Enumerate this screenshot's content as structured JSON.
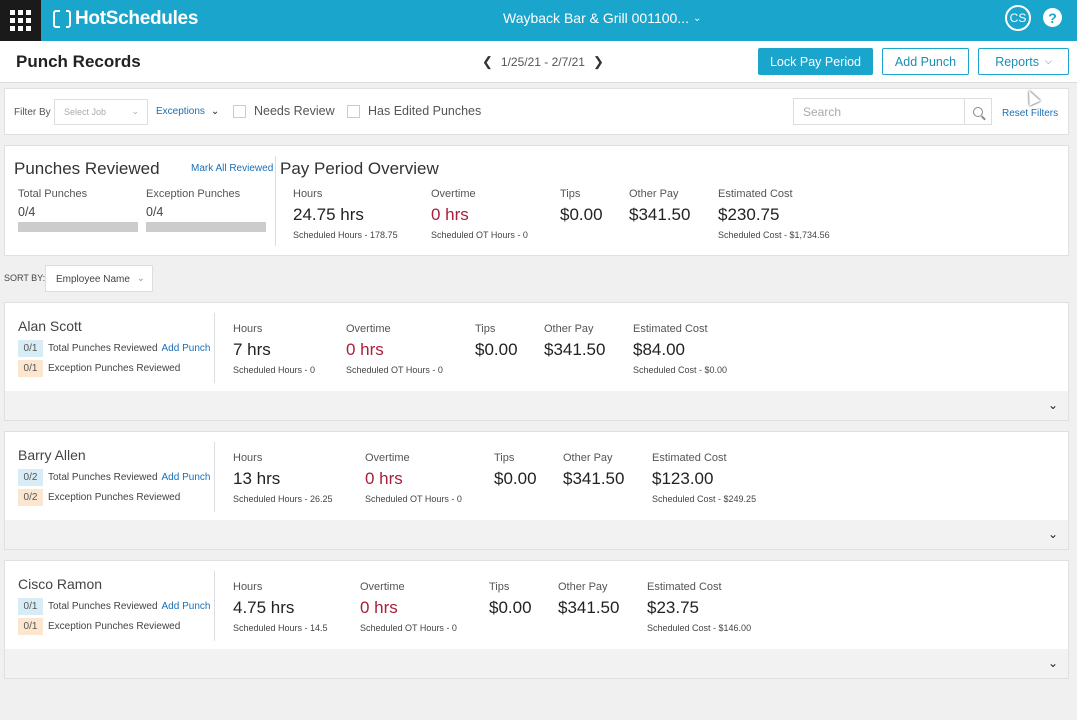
{
  "topbar": {
    "logo": "HotSchedules",
    "location": "Wayback Bar & Grill 001100...",
    "avatar_initials": "CS",
    "help": "?"
  },
  "header": {
    "title": "Punch Records",
    "period": "1/25/21 - 2/7/21",
    "lock_label": "Lock Pay Period",
    "add_punch_label": "Add Punch",
    "reports_label": "Reports"
  },
  "filters": {
    "filter_by": "Filter By",
    "job_placeholder": "Select Job",
    "exceptions": "Exceptions",
    "needs_review": "Needs Review",
    "has_edited": "Has Edited Punches",
    "search_placeholder": "Search",
    "reset": "Reset Filters"
  },
  "summary": {
    "reviewed_title": "Punches Reviewed",
    "mark_all": "Mark All Reviewed",
    "total_punches_label": "Total Punches",
    "total_punches_value": "0/4",
    "exception_punches_label": "Exception Punches",
    "exception_punches_value": "0/4",
    "overview_title": "Pay Period Overview",
    "hours_label": "Hours",
    "hours_value": "24.75 hrs",
    "hours_sub": "Scheduled Hours - 178.75",
    "overtime_label": "Overtime",
    "overtime_value": "0 hrs",
    "overtime_sub": "Scheduled OT Hours - 0",
    "tips_label": "Tips",
    "tips_value": "$0.00",
    "other_pay_label": "Other Pay",
    "other_pay_value": "$341.50",
    "cost_label": "Estimated Cost",
    "cost_value": "$230.75",
    "cost_sub": "Scheduled Cost - $1,734.56"
  },
  "sort": {
    "label": "SORT BY:",
    "value": "Employee Name"
  },
  "labels": {
    "hours": "Hours",
    "overtime": "Overtime",
    "tips": "Tips",
    "other_pay": "Other Pay",
    "cost": "Estimated Cost",
    "total_reviewed": "Total Punches Reviewed",
    "exception_reviewed": "Exception Punches Reviewed",
    "add_punch": "Add Punch"
  },
  "employees": [
    {
      "name": "Alan Scott",
      "total_badge": "0/1",
      "exception_badge": "0/1",
      "hours": "7 hrs",
      "hours_sub": "Scheduled Hours - 0",
      "overtime": "0 hrs",
      "overtime_sub": "Scheduled OT Hours - 0",
      "tips": "$0.00",
      "other_pay": "$341.50",
      "cost": "$84.00",
      "cost_sub": "Scheduled Cost - $0.00"
    },
    {
      "name": "Barry Allen",
      "total_badge": "0/2",
      "exception_badge": "0/2",
      "hours": "13 hrs",
      "hours_sub": "Scheduled Hours - 26.25",
      "overtime": "0 hrs",
      "overtime_sub": "Scheduled OT Hours - 0",
      "tips": "$0.00",
      "other_pay": "$341.50",
      "cost": "$123.00",
      "cost_sub": "Scheduled Cost - $249.25"
    },
    {
      "name": "Cisco Ramon",
      "total_badge": "0/1",
      "exception_badge": "0/1",
      "hours": "4.75 hrs",
      "hours_sub": "Scheduled Hours - 14.5",
      "overtime": "0 hrs",
      "overtime_sub": "Scheduled OT Hours - 0",
      "tips": "$0.00",
      "other_pay": "$341.50",
      "cost": "$23.75",
      "cost_sub": "Scheduled Cost - $146.00"
    }
  ]
}
